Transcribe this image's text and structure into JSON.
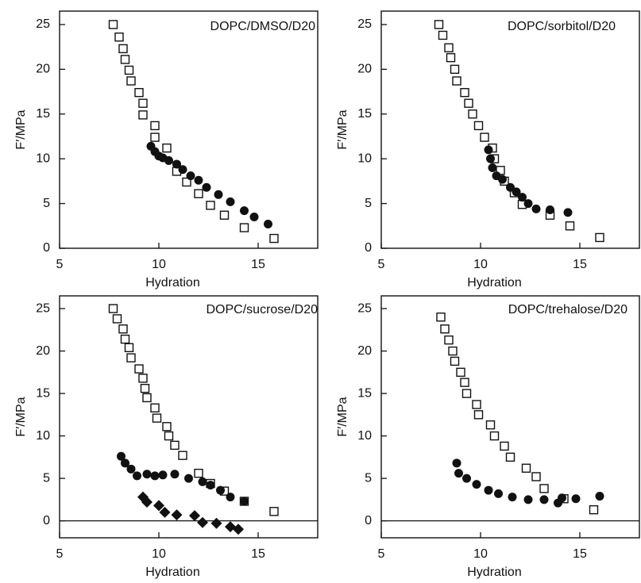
{
  "chart_data": [
    {
      "type": "scatter",
      "annotation": "DOPC/DMSO/D20",
      "xlabel": "Hydration",
      "ylabel": "F′/MPa",
      "xlim": [
        5,
        18
      ],
      "ylim": [
        0,
        26.5
      ],
      "xticks": [
        5,
        10,
        15
      ],
      "yticks": [
        0,
        5,
        10,
        15,
        20,
        25
      ],
      "series": [
        {
          "marker": "square-open",
          "color": "#111111",
          "x": [
            7.7,
            8.0,
            8.2,
            8.3,
            8.5,
            8.6,
            9.0,
            9.2,
            9.2,
            9.8,
            9.8,
            10.4,
            10.9,
            11.4,
            12.0,
            12.6,
            13.3,
            14.3,
            15.8
          ],
          "values": [
            25,
            23.6,
            22.3,
            21.1,
            19.9,
            18.7,
            17.4,
            16.2,
            14.9,
            13.7,
            12.4,
            11.2,
            8.6,
            7.4,
            6.1,
            4.8,
            3.7,
            2.3,
            1.1
          ]
        },
        {
          "marker": "circle",
          "color": "#111111",
          "x": [
            9.6,
            9.8,
            10.0,
            10.2,
            10.5,
            10.9,
            11.2,
            11.6,
            12.0,
            12.4,
            13.0,
            13.6,
            14.3,
            14.8,
            15.5
          ],
          "values": [
            11.4,
            10.8,
            10.3,
            10.1,
            9.8,
            9.4,
            8.8,
            8.1,
            7.6,
            6.8,
            6.0,
            5.2,
            4.2,
            3.5,
            2.7
          ]
        }
      ]
    },
    {
      "type": "scatter",
      "annotation": "DOPC/sorbitol/D20",
      "xlabel": "Hydration",
      "ylabel": "F′/MPa",
      "xlim": [
        5,
        18
      ],
      "ylim": [
        0,
        26.5
      ],
      "xticks": [
        5,
        10,
        15
      ],
      "yticks": [
        0,
        5,
        10,
        15,
        20,
        25
      ],
      "series": [
        {
          "marker": "square-open",
          "color": "#111111",
          "x": [
            7.9,
            8.1,
            8.4,
            8.5,
            8.7,
            8.8,
            9.2,
            9.4,
            9.6,
            9.9,
            10.2,
            10.6,
            10.7,
            11.0,
            11.2,
            11.7,
            12.1,
            13.5,
            14.5,
            16.0
          ],
          "values": [
            25,
            23.8,
            22.4,
            21.3,
            20,
            18.7,
            17.4,
            16.2,
            15,
            13.7,
            12.4,
            11.2,
            10,
            8.7,
            7.5,
            6.2,
            4.9,
            3.7,
            2.5,
            1.2
          ]
        },
        {
          "marker": "circle",
          "color": "#111111",
          "x": [
            10.4,
            10.5,
            10.6,
            10.8,
            11.1,
            11.5,
            11.8,
            12.1,
            12.4,
            12.8,
            13.5,
            14.4
          ],
          "values": [
            11,
            10,
            9,
            8.1,
            7.7,
            6.8,
            6.3,
            5.7,
            5.0,
            4.4,
            4.3,
            4.0
          ]
        }
      ]
    },
    {
      "type": "scatter",
      "annotation": "DOPC/sucrose/D20",
      "xlabel": "Hydration",
      "ylabel": "F′/MPa",
      "xlim": [
        5,
        18
      ],
      "ylim": [
        -2,
        26.5
      ],
      "xticks": [
        5,
        10,
        15
      ],
      "yticks": [
        0,
        5,
        10,
        15,
        20,
        25
      ],
      "hline": 0,
      "series": [
        {
          "marker": "square-open",
          "color": "#111111",
          "x": [
            7.7,
            7.9,
            8.2,
            8.3,
            8.5,
            8.6,
            9.0,
            9.2,
            9.3,
            9.4,
            9.8,
            9.9,
            10.4,
            10.5,
            10.8,
            11.2,
            12.0,
            12.6,
            13.3,
            14.3,
            15.8
          ],
          "values": [
            25,
            23.8,
            22.6,
            21.4,
            20.4,
            19.2,
            17.9,
            16.8,
            15.6,
            14.5,
            13.3,
            12.1,
            11.1,
            10,
            8.9,
            7.7,
            5.6,
            4.4,
            3.5,
            2.3,
            1.1
          ]
        },
        {
          "marker": "circle",
          "color": "#111111",
          "x": [
            8.1,
            8.3,
            8.6,
            8.9,
            9.4,
            9.8,
            10.2,
            10.8,
            11.5,
            12.2,
            12.6,
            13.1,
            13.6,
            14.3
          ],
          "values": [
            7.6,
            6.8,
            6.1,
            5.3,
            5.5,
            5.3,
            5.4,
            5.5,
            5.0,
            4.6,
            4.2,
            3.6,
            2.8,
            2.3
          ]
        },
        {
          "marker": "diamond",
          "color": "#111111",
          "x": [
            9.2,
            9.4,
            10.0,
            10.3,
            10.9,
            11.8,
            12.2,
            12.9,
            13.6,
            14.0
          ],
          "values": [
            2.8,
            2.2,
            1.8,
            1.0,
            0.7,
            0.6,
            -0.2,
            -0.3,
            -0.7,
            -1.0
          ]
        }
      ]
    },
    {
      "type": "scatter",
      "annotation": "DOPC/trehalose/D20",
      "xlabel": "Hydration",
      "ylabel": "F′/MPa",
      "xlim": [
        5,
        18
      ],
      "ylim": [
        -2,
        26.5
      ],
      "xticks": [
        5,
        10,
        15
      ],
      "yticks": [
        0,
        5,
        10,
        15,
        20,
        25
      ],
      "hline": 0,
      "series": [
        {
          "marker": "square-open",
          "color": "#111111",
          "x": [
            8.0,
            8.2,
            8.4,
            8.6,
            8.7,
            9.0,
            9.2,
            9.3,
            9.8,
            9.9,
            10.5,
            10.7,
            11.2,
            11.5,
            12.3,
            12.8,
            13.2,
            14.2,
            15.7
          ],
          "values": [
            24,
            22.6,
            21.3,
            20,
            18.8,
            17.5,
            16.3,
            15,
            13.7,
            12.5,
            11.3,
            10,
            8.8,
            7.5,
            6.2,
            5.2,
            3.8,
            2.6,
            1.3
          ]
        },
        {
          "marker": "circle",
          "color": "#111111",
          "x": [
            8.8,
            8.9,
            9.3,
            9.8,
            10.4,
            10.9,
            11.6,
            12.4,
            13.2,
            13.9,
            14.1,
            14.8,
            16.0
          ],
          "values": [
            6.8,
            5.6,
            5.0,
            4.3,
            3.6,
            3.2,
            2.8,
            2.5,
            2.5,
            2.1,
            2.7,
            2.6,
            2.9
          ]
        }
      ]
    }
  ]
}
